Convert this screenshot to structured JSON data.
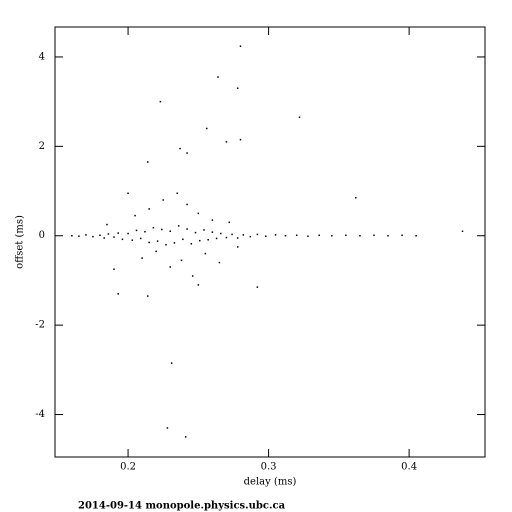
{
  "chart_data": {
    "type": "scatter",
    "xlabel": "delay (ms)",
    "ylabel": "offset (ms)",
    "footer": "2014-09-14 monopole.physics.ubc.ca",
    "color": "#000000",
    "xlim": [
      0.148,
      0.454
    ],
    "ylim": [
      -4.95,
      4.67
    ],
    "xticks": [
      0.2,
      0.3,
      0.4
    ],
    "yticks": [
      -4,
      -2,
      0,
      2,
      4
    ],
    "x": [
      0.16,
      0.165,
      0.17,
      0.175,
      0.18,
      0.183,
      0.186,
      0.19,
      0.193,
      0.196,
      0.2,
      0.203,
      0.206,
      0.209,
      0.212,
      0.215,
      0.218,
      0.221,
      0.224,
      0.227,
      0.23,
      0.233,
      0.236,
      0.239,
      0.242,
      0.245,
      0.248,
      0.251,
      0.254,
      0.257,
      0.26,
      0.263,
      0.266,
      0.27,
      0.274,
      0.278,
      0.282,
      0.287,
      0.292,
      0.298,
      0.305,
      0.312,
      0.32,
      0.328,
      0.336,
      0.345,
      0.355,
      0.365,
      0.375,
      0.385,
      0.395,
      0.405,
      0.438,
      0.205,
      0.21,
      0.215,
      0.22,
      0.225,
      0.23,
      0.235,
      0.238,
      0.242,
      0.246,
      0.25,
      0.255,
      0.26,
      0.265,
      0.272,
      0.278,
      0.19,
      0.2,
      0.25,
      0.185,
      0.28,
      0.264,
      0.278,
      0.223,
      0.256,
      0.322,
      0.28,
      0.27,
      0.237,
      0.242,
      0.214,
      0.362,
      0.231,
      0.228,
      0.241,
      0.193,
      0.214,
      0.292
    ],
    "y": [
      0.0,
      -0.01,
      0.02,
      -0.02,
      0.01,
      -0.05,
      0.04,
      -0.03,
      0.06,
      -0.08,
      0.05,
      -0.1,
      0.12,
      -0.06,
      0.09,
      -0.15,
      0.18,
      -0.12,
      0.14,
      -0.2,
      0.1,
      -0.16,
      0.22,
      -0.08,
      0.15,
      -0.18,
      0.07,
      -0.11,
      0.13,
      -0.09,
      0.08,
      -0.06,
      0.05,
      -0.04,
      0.03,
      -0.05,
      0.02,
      -0.02,
      0.03,
      -0.01,
      0.02,
      0.0,
      0.01,
      -0.01,
      0.01,
      0.0,
      0.01,
      0.0,
      0.01,
      0.0,
      0.01,
      0.0,
      0.1,
      0.45,
      -0.5,
      0.6,
      -0.35,
      0.8,
      -0.7,
      0.95,
      -0.55,
      0.7,
      -0.9,
      0.5,
      -0.4,
      0.35,
      -0.6,
      0.3,
      -0.25,
      -0.75,
      0.95,
      -1.1,
      0.25,
      4.24,
      3.55,
      3.3,
      3.0,
      2.4,
      2.65,
      2.15,
      2.1,
      1.95,
      1.85,
      1.65,
      0.85,
      -2.85,
      -4.3,
      -4.5,
      -1.3,
      -1.35,
      -1.15
    ]
  }
}
